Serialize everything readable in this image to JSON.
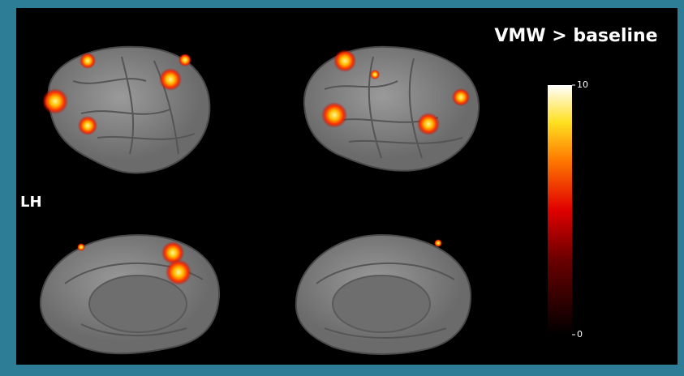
{
  "title": "VMW > baseline",
  "hemisphere_label": "LH",
  "colorbar": {
    "range": [
      0,
      10
    ],
    "ticks": [
      0,
      10
    ]
  }
}
